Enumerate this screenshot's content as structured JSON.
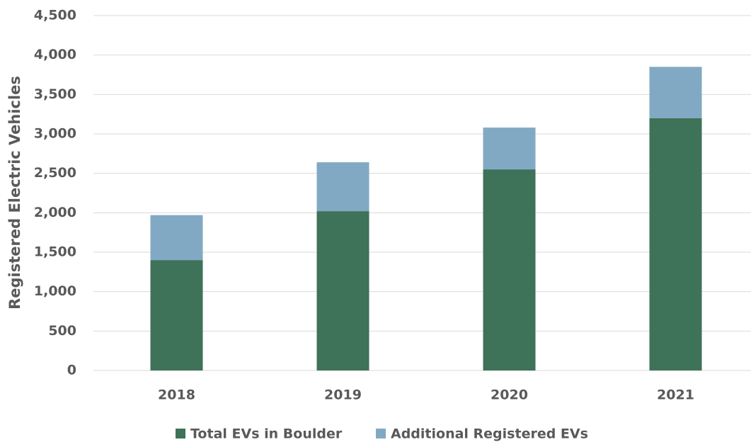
{
  "chart_data": {
    "type": "bar",
    "stacked": true,
    "ylabel": "Registered Electric Vehicles",
    "categories": [
      "2018",
      "2019",
      "2020",
      "2021"
    ],
    "series": [
      {
        "name": "Total EVs in Boulder",
        "color": "#3e7259",
        "values": [
          1400,
          2020,
          2550,
          3200
        ]
      },
      {
        "name": "Additional Registered EVs",
        "color": "#82a9c4",
        "values": [
          570,
          620,
          530,
          650
        ]
      }
    ],
    "ylim": [
      0,
      4500
    ],
    "yticks": [
      0,
      500,
      {
        "value": 1000,
        "label": "1,000"
      },
      {
        "value": 1500,
        "label": "1,500"
      },
      {
        "value": 2000,
        "label": "2,000"
      },
      {
        "value": 2500,
        "label": "2,500"
      },
      {
        "value": 3000,
        "label": "3,000"
      },
      {
        "value": 3500,
        "label": "3,500"
      },
      {
        "value": 4000,
        "label": "4,000"
      },
      {
        "value": 4500,
        "label": "4,500"
      }
    ],
    "grid": true,
    "legend": "bottom"
  }
}
